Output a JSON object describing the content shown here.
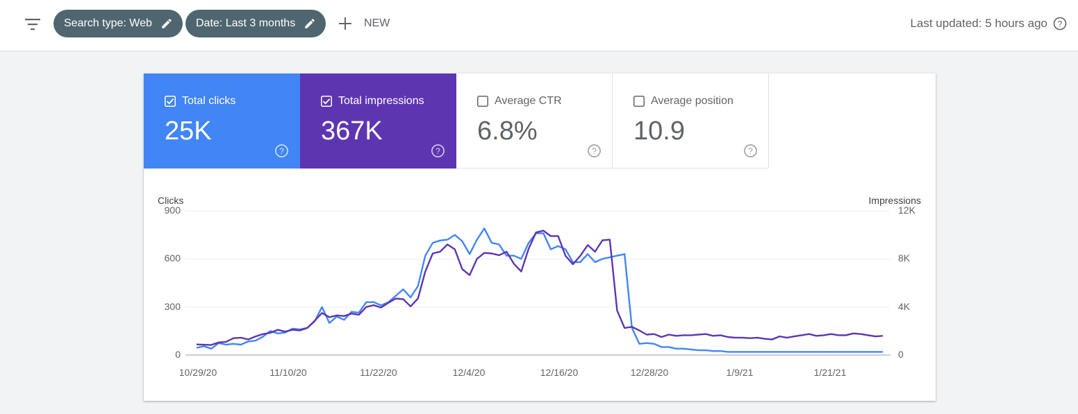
{
  "toolbar": {
    "filter_icon": "filter-list-icon",
    "chips": [
      {
        "label": "Search type: Web",
        "icon": "pencil-icon"
      },
      {
        "label": "Date: Last 3 months",
        "icon": "pencil-icon"
      }
    ],
    "new_label": "NEW",
    "last_updated": "Last updated: 5 hours ago"
  },
  "metrics": [
    {
      "label": "Total clicks",
      "value": "25K",
      "checked": true,
      "color": "#4285f4"
    },
    {
      "label": "Total impressions",
      "value": "367K",
      "checked": true,
      "color": "#5e35b1"
    },
    {
      "label": "Average CTR",
      "value": "6.8%",
      "checked": false
    },
    {
      "label": "Average position",
      "value": "10.9",
      "checked": false
    }
  ],
  "chart_data": {
    "type": "line",
    "xlabel": "",
    "ylabel_left": "Clicks",
    "ylabel_right": "Impressions",
    "y_left_ticks": [
      "900",
      "600",
      "300",
      "0"
    ],
    "y_right_ticks": [
      "12K",
      "8K",
      "4K",
      "0"
    ],
    "ylim_left": [
      0,
      900
    ],
    "ylim_right": [
      0,
      12000
    ],
    "x_ticks": [
      "10/29/20",
      "11/10/20",
      "11/22/20",
      "12/4/20",
      "12/16/20",
      "12/28/20",
      "1/9/21",
      "1/21/21"
    ],
    "grid": true,
    "legend": "none",
    "series": [
      {
        "name": "Clicks",
        "axis": "left",
        "color": "#4285f4",
        "values": [
          45,
          55,
          40,
          75,
          65,
          70,
          65,
          85,
          90,
          115,
          150,
          135,
          140,
          165,
          160,
          170,
          210,
          300,
          200,
          240,
          220,
          270,
          265,
          330,
          330,
          310,
          330,
          370,
          410,
          360,
          430,
          620,
          700,
          715,
          720,
          750,
          710,
          630,
          720,
          790,
          700,
          690,
          620,
          620,
          600,
          700,
          760,
          760,
          660,
          680,
          660,
          580,
          580,
          630,
          580,
          600,
          610,
          620,
          630,
          170,
          70,
          75,
          70,
          50,
          50,
          40,
          40,
          35,
          30,
          30,
          25,
          25,
          20,
          20,
          20,
          20,
          20,
          20,
          20,
          20,
          20,
          20,
          20,
          20,
          20,
          20,
          20,
          20,
          20,
          20,
          20,
          20,
          20,
          20
        ]
      },
      {
        "name": "Impressions",
        "axis": "right",
        "color": "#5e35b1",
        "values": [
          880,
          860,
          840,
          1050,
          1100,
          1400,
          1450,
          1300,
          1550,
          1750,
          1850,
          2100,
          1950,
          2100,
          2050,
          2250,
          2850,
          3500,
          3150,
          3300,
          3250,
          3450,
          3350,
          4000,
          4150,
          3950,
          4350,
          4700,
          4650,
          4050,
          4700,
          6950,
          8450,
          8600,
          9200,
          8800,
          7150,
          6650,
          8000,
          8500,
          8450,
          8300,
          8600,
          7600,
          6950,
          8850,
          10200,
          10350,
          9900,
          9900,
          8250,
          7550,
          8250,
          9150,
          8600,
          9550,
          9600,
          3700,
          2250,
          2350,
          2050,
          1700,
          1750,
          1500,
          1700,
          1600,
          1650,
          1650,
          1700,
          1750,
          1600,
          1650,
          1500,
          1450,
          1450,
          1400,
          1450,
          1350,
          1300,
          1550,
          1450,
          1550,
          1650,
          1750,
          1600,
          1650,
          1750,
          1650,
          1650,
          1800,
          1750,
          1650,
          1550,
          1600
        ]
      }
    ]
  }
}
